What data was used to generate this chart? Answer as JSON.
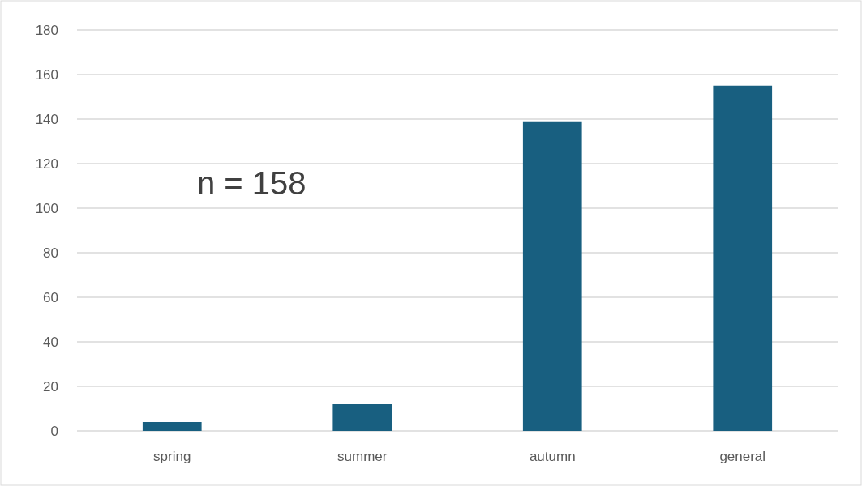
{
  "chart_data": {
    "type": "bar",
    "categories": [
      "spring",
      "summer",
      "autumn",
      "general"
    ],
    "values": [
      4,
      12,
      139,
      155
    ],
    "color": "#185f80",
    "ylim": [
      0,
      180
    ],
    "yticks": [
      0,
      20,
      40,
      60,
      80,
      100,
      120,
      140,
      160,
      180
    ],
    "grid": "y",
    "annotations": [
      "n = 158"
    ]
  }
}
